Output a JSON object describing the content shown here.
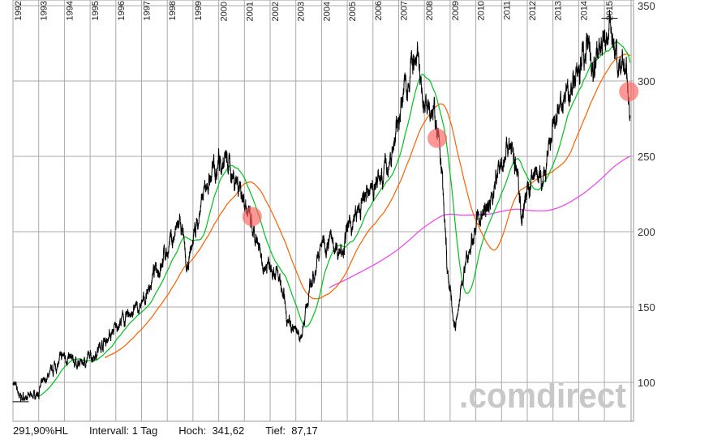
{
  "chart_data": {
    "type": "line",
    "x_unit": "year",
    "xlim": [
      1992.0,
      2016.04
    ],
    "ylim": [
      75,
      352
    ],
    "grid": true,
    "x_tick_labels": [
      "1992",
      "1993",
      "1994",
      "1995",
      "1996",
      "1997",
      "1998",
      "1999",
      "2000",
      "2001",
      "2002",
      "2003",
      "2004",
      "2005",
      "2006",
      "2007",
      "2008",
      "2009",
      "2010",
      "2011",
      "2012",
      "2013",
      "2014",
      "2015"
    ],
    "y_tick_labels": [
      "100",
      "150",
      "200",
      "250",
      "300",
      "350"
    ],
    "y_ticks": [
      100,
      150,
      200,
      250,
      300,
      350
    ],
    "series": [
      {
        "color": "#000000",
        "style": "price",
        "points": [
          [
            1992.0,
            100
          ],
          [
            1992.3,
            90
          ],
          [
            1992.7,
            90
          ],
          [
            1993.0,
            94
          ],
          [
            1993.5,
            108
          ],
          [
            1994.0,
            118
          ],
          [
            1994.5,
            112
          ],
          [
            1995.0,
            116
          ],
          [
            1995.5,
            126
          ],
          [
            1996.0,
            136
          ],
          [
            1996.5,
            145
          ],
          [
            1997.0,
            150
          ],
          [
            1997.5,
            172
          ],
          [
            1998.0,
            188
          ],
          [
            1998.5,
            205
          ],
          [
            1998.8,
            172
          ],
          [
            1999.0,
            195
          ],
          [
            1999.5,
            228
          ],
          [
            2000.0,
            250
          ],
          [
            2000.3,
            245
          ],
          [
            2000.7,
            236
          ],
          [
            2001.0,
            222
          ],
          [
            2001.3,
            198
          ],
          [
            2001.7,
            178
          ],
          [
            2002.0,
            180
          ],
          [
            2002.3,
            172
          ],
          [
            2002.7,
            140
          ],
          [
            2003.0,
            135
          ],
          [
            2003.2,
            130
          ],
          [
            2003.5,
            158
          ],
          [
            2004.0,
            192
          ],
          [
            2004.3,
            196
          ],
          [
            2004.7,
            186
          ],
          [
            2005.0,
            200
          ],
          [
            2005.5,
            215
          ],
          [
            2006.0,
            230
          ],
          [
            2006.5,
            240
          ],
          [
            2006.8,
            256
          ],
          [
            2007.0,
            276
          ],
          [
            2007.3,
            300
          ],
          [
            2007.5,
            312
          ],
          [
            2007.8,
            305
          ],
          [
            2008.0,
            285
          ],
          [
            2008.3,
            290
          ],
          [
            2008.5,
            268
          ],
          [
            2008.7,
            230
          ],
          [
            2008.9,
            172
          ],
          [
            2009.1,
            145
          ],
          [
            2009.2,
            136
          ],
          [
            2009.5,
            170
          ],
          [
            2009.8,
            188
          ],
          [
            2010.0,
            205
          ],
          [
            2010.4,
            215
          ],
          [
            2010.7,
            228
          ],
          [
            2011.0,
            246
          ],
          [
            2011.3,
            262
          ],
          [
            2011.6,
            236
          ],
          [
            2011.8,
            214
          ],
          [
            2012.0,
            226
          ],
          [
            2012.3,
            242
          ],
          [
            2012.6,
            230
          ],
          [
            2012.8,
            246
          ],
          [
            2013.0,
            266
          ],
          [
            2013.3,
            282
          ],
          [
            2013.6,
            292
          ],
          [
            2014.0,
            310
          ],
          [
            2014.3,
            326
          ],
          [
            2014.6,
            310
          ],
          [
            2014.9,
            322
          ],
          [
            2015.2,
            337
          ],
          [
            2015.4,
            326
          ],
          [
            2015.6,
            298
          ],
          [
            2015.7,
            314
          ],
          [
            2015.85,
            306
          ],
          [
            2016.0,
            280
          ]
        ]
      },
      {
        "color": "#00c020",
        "style": "moving-average"
      },
      {
        "color": "#ff6000",
        "style": "moving-average"
      },
      {
        "color": "#ee44ee",
        "style": "moving-average"
      }
    ],
    "highlights": [
      [
        2001.3,
        210
      ],
      [
        2008.5,
        262
      ],
      [
        2015.95,
        293
      ]
    ],
    "highlight_color": "#ff6060",
    "high_marker": [
      2015.2,
      341.62
    ],
    "low_marker": [
      1992.3,
      87.17
    ]
  },
  "footer": {
    "performance": "291,90%HL",
    "interval": "Intervall: 1 Tag",
    "high": "Hoch:  341,62",
    "low": "Tief:  87,17"
  },
  "watermark": ".comdirect"
}
